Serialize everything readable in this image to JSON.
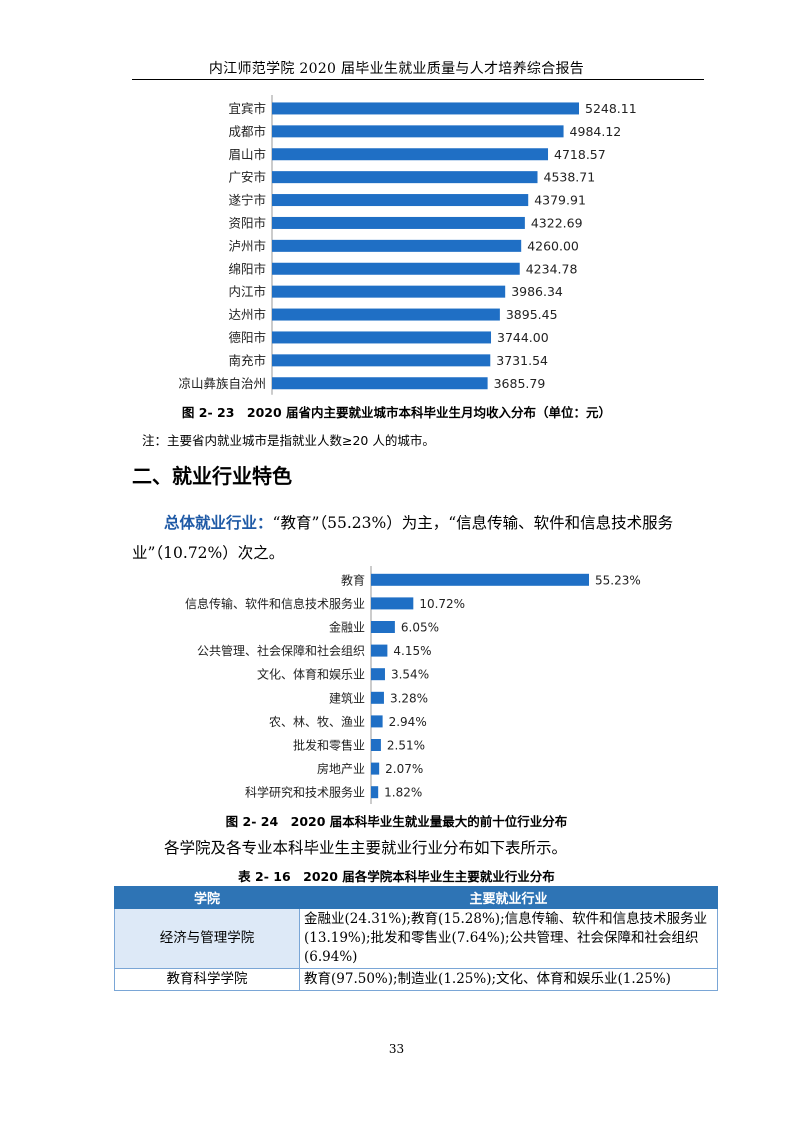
{
  "header": {
    "title": "内江师范学院 2020 届毕业生就业质量与人才培养综合报告"
  },
  "chart_data": [
    {
      "type": "bar",
      "orientation": "horizontal",
      "categories": [
        "宜宾市",
        "成都市",
        "眉山市",
        "广安市",
        "遂宁市",
        "资阳市",
        "泸州市",
        "绵阳市",
        "内江市",
        "达州市",
        "德阳市",
        "南充市",
        "凉山彝族自治州"
      ],
      "values": [
        5248.11,
        4984.12,
        4718.57,
        4538.71,
        4379.91,
        4322.69,
        4260.0,
        4234.78,
        3986.34,
        3895.45,
        3744.0,
        3731.54,
        3685.79
      ],
      "value_labels": [
        "5248.11",
        "4984.12",
        "4718.57",
        "4538.71",
        "4379.91",
        "4322.69",
        "4260.00",
        "4234.78",
        "3986.34",
        "3895.45",
        "3744.00",
        "3731.54",
        "3685.79"
      ],
      "bar_color": "#1f6fc5",
      "grid": false,
      "title": "图 2- 23　2020 届省内主要就业城市本科毕业生月均收入分布（单位：元）"
    },
    {
      "type": "bar",
      "orientation": "horizontal",
      "categories": [
        "教育",
        "信息传输、软件和信息技术服务业",
        "金融业",
        "公共管理、社会保障和社会组织",
        "文化、体育和娱乐业",
        "建筑业",
        "农、林、牧、渔业",
        "批发和零售业",
        "房地产业",
        "科学研究和技术服务业"
      ],
      "values": [
        55.23,
        10.72,
        6.05,
        4.15,
        3.54,
        3.28,
        2.94,
        2.51,
        2.07,
        1.82
      ],
      "value_labels": [
        "55.23%",
        "10.72%",
        "6.05%",
        "4.15%",
        "3.54%",
        "3.28%",
        "2.94%",
        "2.51%",
        "2.07%",
        "1.82%"
      ],
      "bar_color": "#1f6fc5",
      "grid": false,
      "title": "图 2- 24　2020 届本科毕业生就业量最大的前十位行业分布"
    }
  ],
  "note": "注：主要省内就业城市是指就业人数≥20 人的城市。",
  "section_heading": "二、就业行业特色",
  "paragraph1": {
    "lead": "总体就业行业：",
    "text": "“教育”（55.23%）为主，“信息传输、软件和信息技术服务业”（10.72%）次之。"
  },
  "paragraph2": "各学院及各专业本科毕业生主要就业行业分布如下表所示。",
  "table": {
    "caption": "表 2- 16　2020 届各学院本科毕业生主要就业行业分布",
    "headers": [
      "学院",
      "主要就业行业"
    ],
    "rows": [
      {
        "college": "经济与管理学院",
        "industries": "金融业(24.31%);教育(15.28%);信息传输、软件和信息技术服务业(13.19%);批发和零售业(7.64%);公共管理、社会保障和社会组织(6.94%)"
      },
      {
        "college": "教育科学学院",
        "industries": "教育(97.50%);制造业(1.25%);文化、体育和娱乐业(1.25%)"
      }
    ]
  },
  "page_number": "33"
}
